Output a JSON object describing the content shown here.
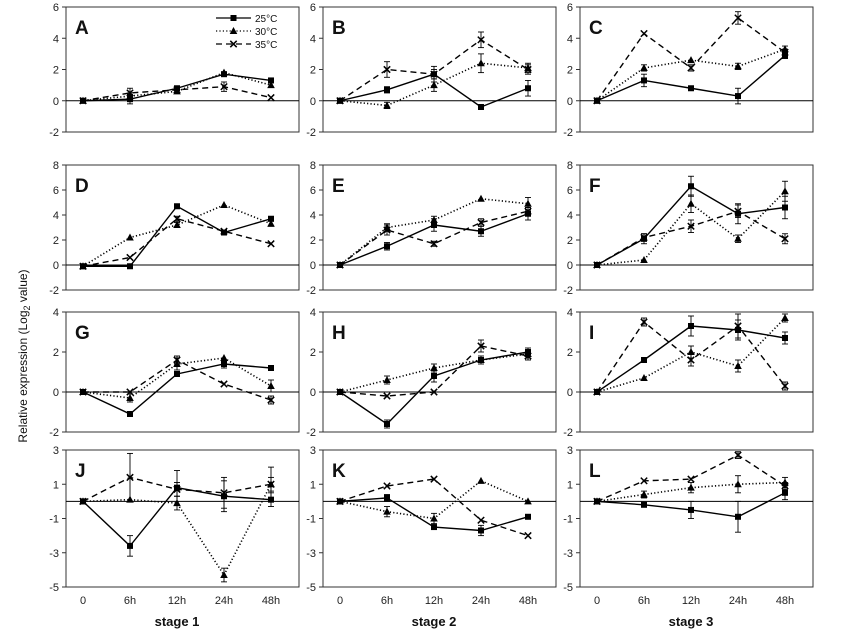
{
  "figure": {
    "ylabel_main": "Relative expression (Log",
    "ylabel_sub": "2",
    "ylabel_tail": " value)",
    "stage_labels": [
      "stage 1",
      "stage 2",
      "stage 3"
    ],
    "legend": [
      {
        "label": "25°C",
        "style": "solid",
        "marker": "square"
      },
      {
        "label": "30°C",
        "style": "dotted",
        "marker": "triangle"
      },
      {
        "label": "35°C",
        "style": "dashed",
        "marker": "x"
      }
    ]
  },
  "chart_data": [
    {
      "panel": "A",
      "type": "line",
      "categories": [
        "0",
        "6h",
        "12h",
        "24h",
        "48h"
      ],
      "ylim": [
        -2,
        6
      ],
      "yticks": [
        -2,
        0,
        2,
        4,
        6
      ],
      "series": [
        {
          "name": "25°C",
          "values": [
            0,
            0.1,
            0.8,
            1.7,
            1.3
          ],
          "errors": [
            0.1,
            0.3,
            0.1,
            0.15,
            0.1
          ]
        },
        {
          "name": "30°C",
          "values": [
            0,
            0.3,
            0.6,
            1.8,
            1.0
          ],
          "errors": [
            0.1,
            0.2,
            0.1,
            0.1,
            0.1
          ]
        },
        {
          "name": "35°C",
          "values": [
            0,
            0.5,
            0.7,
            0.9,
            0.2
          ],
          "errors": [
            0.1,
            0.3,
            0.1,
            0.3,
            0.1
          ]
        }
      ]
    },
    {
      "panel": "B",
      "type": "line",
      "categories": [
        "0",
        "6h",
        "12h",
        "24h",
        "48h"
      ],
      "ylim": [
        -2,
        6
      ],
      "yticks": [
        -2,
        0,
        2,
        4,
        6
      ],
      "series": [
        {
          "name": "25°C",
          "values": [
            0,
            0.7,
            1.7,
            -0.4,
            0.8
          ],
          "errors": [
            0.1,
            0.2,
            0.3,
            0.1,
            0.5
          ]
        },
        {
          "name": "30°C",
          "values": [
            0,
            -0.3,
            1.0,
            2.4,
            2.1
          ],
          "errors": [
            0.1,
            0.2,
            0.4,
            0.6,
            0.3
          ]
        },
        {
          "name": "35°C",
          "values": [
            0,
            2.0,
            1.7,
            3.9,
            2.0
          ],
          "errors": [
            0.1,
            0.5,
            0.5,
            0.5,
            0.3
          ]
        }
      ]
    },
    {
      "panel": "C",
      "type": "line",
      "categories": [
        "0",
        "6h",
        "12h",
        "24h",
        "48h"
      ],
      "ylim": [
        -2,
        6
      ],
      "yticks": [
        -2,
        0,
        2,
        4,
        6
      ],
      "series": [
        {
          "name": "25°C",
          "values": [
            0,
            1.3,
            0.8,
            0.3,
            2.9
          ],
          "errors": [
            0.1,
            0.4,
            0.1,
            0.5,
            0.2
          ]
        },
        {
          "name": "30°C",
          "values": [
            0,
            2.1,
            2.6,
            2.2,
            3.3
          ],
          "errors": [
            0.1,
            0.2,
            0.1,
            0.2,
            0.2
          ]
        },
        {
          "name": "35°C",
          "values": [
            0,
            4.3,
            2.1,
            5.3,
            3.1
          ],
          "errors": [
            0.1,
            0.1,
            0.2,
            0.4,
            0.2
          ]
        }
      ]
    },
    {
      "panel": "D",
      "type": "line",
      "categories": [
        "0",
        "6h",
        "12h",
        "24h",
        "48h"
      ],
      "ylim": [
        -2,
        8
      ],
      "yticks": [
        -2,
        0,
        2,
        4,
        6,
        8
      ],
      "series": [
        {
          "name": "25°C",
          "values": [
            -0.1,
            -0.1,
            4.7,
            2.6,
            3.7
          ],
          "errors": [
            0.1,
            0.1,
            0.1,
            0.1,
            0.1
          ]
        },
        {
          "name": "30°C",
          "values": [
            -0.1,
            2.2,
            3.2,
            4.8,
            3.3
          ],
          "errors": [
            0.1,
            0.1,
            0.2,
            0.1,
            0.2
          ]
        },
        {
          "name": "35°C",
          "values": [
            -0.1,
            0.6,
            3.7,
            2.7,
            1.7
          ],
          "errors": [
            0.1,
            0.1,
            0.2,
            0.1,
            0.1
          ]
        }
      ]
    },
    {
      "panel": "E",
      "type": "line",
      "categories": [
        "0",
        "6h",
        "12h",
        "24h",
        "48h"
      ],
      "ylim": [
        -2,
        8
      ],
      "yticks": [
        -2,
        0,
        2,
        4,
        6,
        8
      ],
      "series": [
        {
          "name": "25°C",
          "values": [
            0,
            1.5,
            3.2,
            2.7,
            4.1
          ],
          "errors": [
            0.1,
            0.3,
            0.5,
            0.4,
            0.5
          ]
        },
        {
          "name": "30°C",
          "values": [
            0,
            3.0,
            3.6,
            5.3,
            4.9
          ],
          "errors": [
            0.1,
            0.3,
            0.3,
            0.1,
            0.5
          ]
        },
        {
          "name": "35°C",
          "values": [
            0,
            2.8,
            1.7,
            3.4,
            4.3
          ],
          "errors": [
            0.1,
            0.4,
            0.2,
            0.3,
            0.3
          ]
        }
      ]
    },
    {
      "panel": "F",
      "type": "line",
      "categories": [
        "0",
        "6h",
        "12h",
        "24h",
        "48h"
      ],
      "ylim": [
        -2,
        8
      ],
      "yticks": [
        -2,
        0,
        2,
        4,
        6,
        8
      ],
      "series": [
        {
          "name": "25°C",
          "values": [
            0,
            2.1,
            6.3,
            4.1,
            4.6
          ],
          "errors": [
            0.1,
            0.4,
            0.8,
            0.8,
            0.9
          ]
        },
        {
          "name": "30°C",
          "values": [
            0,
            0.4,
            4.9,
            2.1,
            5.9
          ],
          "errors": [
            0.1,
            0.1,
            0.7,
            0.3,
            0.8
          ]
        },
        {
          "name": "35°C",
          "values": [
            0,
            2.2,
            3.1,
            4.3,
            2.1
          ],
          "errors": [
            0.1,
            0.3,
            0.5,
            0.5,
            0.4
          ]
        }
      ]
    },
    {
      "panel": "G",
      "type": "line",
      "categories": [
        "0",
        "6h",
        "12h",
        "24h",
        "48h"
      ],
      "ylim": [
        -2,
        4
      ],
      "yticks": [
        -2,
        0,
        2,
        4
      ],
      "series": [
        {
          "name": "25°C",
          "values": [
            0,
            -1.1,
            0.9,
            1.4,
            1.2
          ],
          "errors": [
            0.1,
            0.1,
            0.1,
            0.2,
            0.1
          ]
        },
        {
          "name": "30°C",
          "values": [
            0,
            -0.3,
            1.4,
            1.7,
            0.3
          ],
          "errors": [
            0.1,
            0.2,
            0.3,
            0.1,
            0.3
          ]
        },
        {
          "name": "35°C",
          "values": [
            0,
            0,
            1.6,
            0.4,
            -0.4
          ],
          "errors": [
            0.1,
            0.1,
            0.2,
            0.1,
            0.2
          ]
        }
      ]
    },
    {
      "panel": "H",
      "type": "line",
      "categories": [
        "0",
        "6h",
        "12h",
        "24h",
        "48h"
      ],
      "ylim": [
        -2,
        4
      ],
      "yticks": [
        -2,
        0,
        2,
        4
      ],
      "series": [
        {
          "name": "25°C",
          "values": [
            0,
            -1.6,
            0.8,
            1.6,
            2.0
          ],
          "errors": [
            0.1,
            0.2,
            0.3,
            0.2,
            0.2
          ]
        },
        {
          "name": "30°C",
          "values": [
            0,
            0.6,
            1.2,
            1.6,
            1.9
          ],
          "errors": [
            0.1,
            0.2,
            0.2,
            0.1,
            0.2
          ]
        },
        {
          "name": "35°C",
          "values": [
            0,
            -0.2,
            0,
            2.3,
            1.8
          ],
          "errors": [
            0.1,
            0.1,
            0.1,
            0.3,
            0.2
          ]
        }
      ]
    },
    {
      "panel": "I",
      "type": "line",
      "categories": [
        "0",
        "6h",
        "12h",
        "24h",
        "48h"
      ],
      "ylim": [
        -2,
        4
      ],
      "yticks": [
        -2,
        0,
        2,
        4
      ],
      "series": [
        {
          "name": "25°C",
          "values": [
            0,
            1.6,
            3.3,
            3.1,
            2.7
          ],
          "errors": [
            0.1,
            0.1,
            0.5,
            0.5,
            0.3
          ]
        },
        {
          "name": "30°C",
          "values": [
            0,
            0.7,
            2.0,
            1.3,
            3.7
          ],
          "errors": [
            0.1,
            0.1,
            0.3,
            0.3,
            0.2
          ]
        },
        {
          "name": "35°C",
          "values": [
            0,
            3.5,
            1.6,
            3.3,
            0.3
          ],
          "errors": [
            0.1,
            0.2,
            0.3,
            0.6,
            0.2
          ]
        }
      ]
    },
    {
      "panel": "J",
      "type": "line",
      "categories": [
        "0",
        "6h",
        "12h",
        "24h",
        "48h"
      ],
      "ylim": [
        -5,
        3
      ],
      "yticks": [
        -5,
        -3,
        -1,
        1,
        3
      ],
      "series": [
        {
          "name": "25°C",
          "values": [
            0,
            -2.6,
            0.8,
            0.3,
            0.1
          ],
          "errors": [
            0.1,
            0.6,
            1.0,
            0.9,
            0.4
          ]
        },
        {
          "name": "30°C",
          "values": [
            0,
            0.1,
            -0.1,
            -4.3,
            1.0
          ],
          "errors": [
            0.1,
            0.1,
            0.4,
            0.4,
            1.0
          ]
        },
        {
          "name": "35°C",
          "values": [
            0,
            1.4,
            0.7,
            0.5,
            1.0
          ],
          "errors": [
            0.1,
            1.4,
            0.4,
            0.9,
            0.4
          ]
        }
      ]
    },
    {
      "panel": "K",
      "type": "line",
      "categories": [
        "0",
        "6h",
        "12h",
        "24h",
        "48h"
      ],
      "ylim": [
        -5,
        3
      ],
      "yticks": [
        -5,
        -3,
        -1,
        1,
        3
      ],
      "series": [
        {
          "name": "25°C",
          "values": [
            0,
            0.2,
            -1.5,
            -1.7,
            -0.9
          ],
          "errors": [
            0.1,
            0.2,
            0.1,
            0.3,
            0.1
          ]
        },
        {
          "name": "30°C",
          "values": [
            0,
            -0.6,
            -1.0,
            1.2,
            0.0
          ],
          "errors": [
            0.1,
            0.3,
            0.3,
            0.1,
            0.1
          ]
        },
        {
          "name": "35°C",
          "values": [
            0,
            0.9,
            1.3,
            -1.1,
            -2.0
          ],
          "errors": [
            0.1,
            0.1,
            0.1,
            0.1,
            0.1
          ]
        }
      ]
    },
    {
      "panel": "L",
      "type": "line",
      "categories": [
        "0",
        "6h",
        "12h",
        "24h",
        "48h"
      ],
      "ylim": [
        -5,
        3
      ],
      "yticks": [
        -5,
        -3,
        -1,
        1,
        3
      ],
      "series": [
        {
          "name": "25°C",
          "values": [
            0,
            -0.2,
            -0.5,
            -0.9,
            0.5
          ],
          "errors": [
            0.1,
            0.1,
            0.5,
            0.9,
            0.4
          ]
        },
        {
          "name": "30°C",
          "values": [
            0,
            0.4,
            0.8,
            1.0,
            1.1
          ],
          "errors": [
            0.1,
            0.2,
            0.3,
            0.5,
            0.3
          ]
        },
        {
          "name": "35°C",
          "values": [
            0,
            1.2,
            1.3,
            2.7,
            0.9
          ],
          "errors": [
            0.1,
            0.1,
            0.1,
            0.2,
            0.2
          ]
        }
      ]
    }
  ]
}
